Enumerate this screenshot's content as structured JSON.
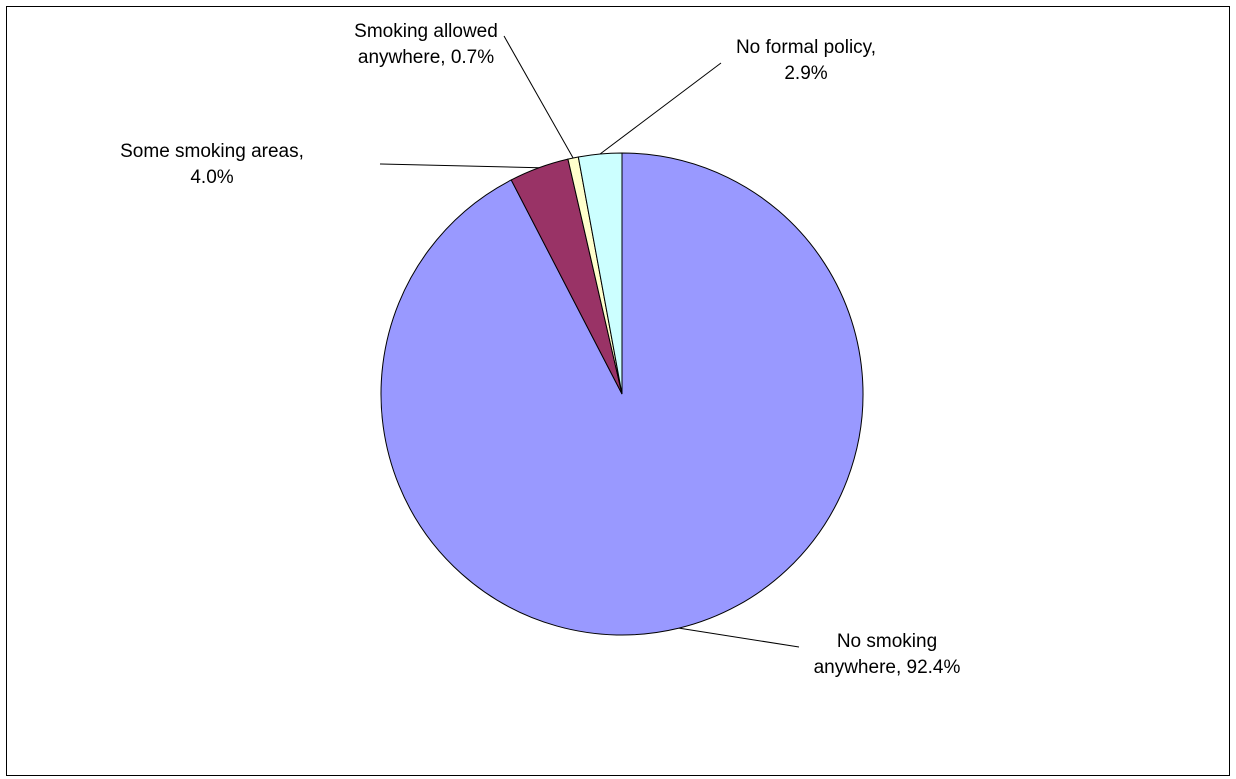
{
  "chart_data": {
    "type": "pie",
    "title": "",
    "start_angle_deg": 0,
    "direction": "clockwise",
    "slices": [
      {
        "category": "No smoking anywhere",
        "value": 92.4,
        "color": "#9999FF",
        "label_lines": [
          "No smoking",
          "anywhere, 92.4%"
        ]
      },
      {
        "category": "Some smoking areas",
        "value": 4.0,
        "color": "#993366",
        "label_lines": [
          "Some smoking areas,",
          "4.0%"
        ]
      },
      {
        "category": "Smoking allowed anywhere",
        "value": 0.7,
        "color": "#FFFFCC",
        "label_lines": [
          "Smoking allowed",
          "anywhere, 0.7%"
        ]
      },
      {
        "category": "No formal policy",
        "value": 2.9,
        "color": "#CCFFFF",
        "label_lines": [
          "No formal policy,",
          "2.9%"
        ]
      }
    ]
  }
}
